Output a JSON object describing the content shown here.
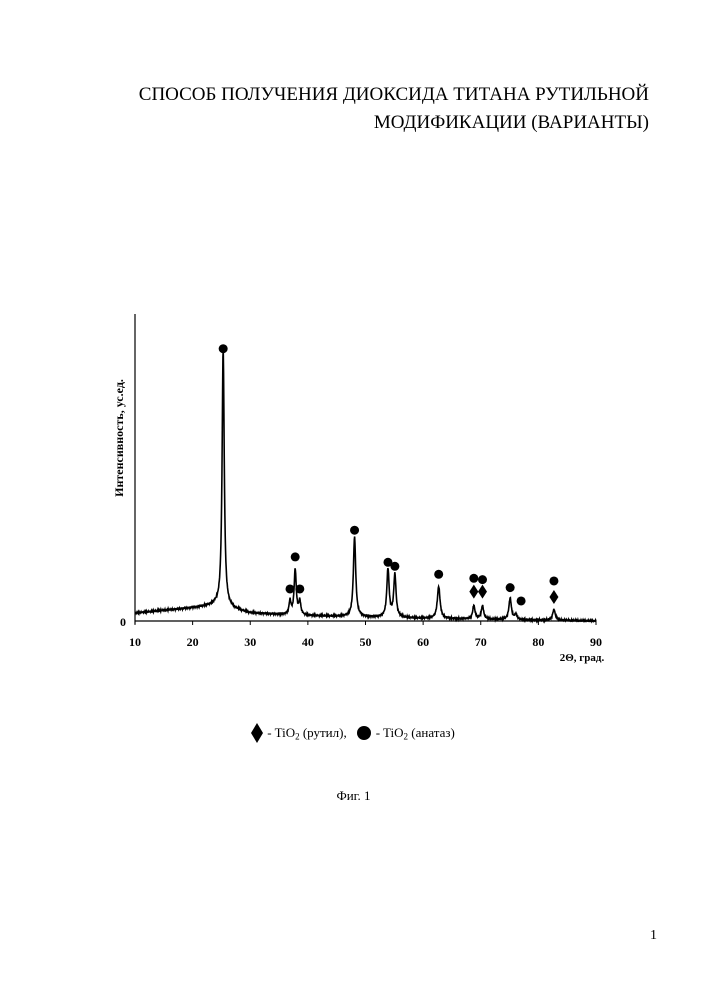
{
  "document": {
    "title_line1": "СПОСОБ ПОЛУЧЕНИЯ ДИОКСИДА ТИТАНА РУТИЛЬНОЙ",
    "title_line2": "МОДИФИКАЦИИ (ВАРИАНТЫ)",
    "figure_caption": "Фиг. 1",
    "page_number": "1"
  },
  "legend": {
    "rutile_prefix": "- TiO",
    "rutile_subscript": "2",
    "rutile_suffix": " (рутил),",
    "anatase_prefix": "- TiO",
    "anatase_subscript": "2",
    "anatase_suffix": " (анатаз)",
    "rutile_marker": "diamond-icon",
    "anatase_marker": "circle-icon"
  },
  "chart_data": {
    "type": "line",
    "xlabel": "2Θ, град.",
    "ylabel": "Интенсивность, ус.ед.",
    "xlim": [
      10,
      90
    ],
    "ylim": [
      0,
      1.15
    ],
    "x_ticks": [
      "10",
      "20",
      "30",
      "40",
      "50",
      "60",
      "70",
      "80",
      "90"
    ],
    "y_ticks": [
      "0"
    ],
    "grid": false,
    "line_color": "#000000",
    "baseline": [
      [
        10,
        0.03
      ],
      [
        20,
        0.05
      ],
      [
        24,
        0.06
      ],
      [
        30,
        0.03
      ],
      [
        40,
        0.02
      ],
      [
        60,
        0.01
      ],
      [
        90,
        0.0
      ]
    ],
    "peaks": [
      {
        "x": 25.3,
        "height": 0.97,
        "width": 0.22
      },
      {
        "x": 36.9,
        "height": 0.05,
        "width": 0.2
      },
      {
        "x": 37.8,
        "height": 0.17,
        "width": 0.22
      },
      {
        "x": 38.6,
        "height": 0.05,
        "width": 0.2
      },
      {
        "x": 48.1,
        "height": 0.3,
        "width": 0.24
      },
      {
        "x": 53.9,
        "height": 0.18,
        "width": 0.24
      },
      {
        "x": 55.1,
        "height": 0.16,
        "width": 0.24
      },
      {
        "x": 62.7,
        "height": 0.12,
        "width": 0.28
      },
      {
        "x": 68.8,
        "height": 0.05,
        "width": 0.24
      },
      {
        "x": 70.3,
        "height": 0.05,
        "width": 0.24
      },
      {
        "x": 75.1,
        "height": 0.08,
        "width": 0.26
      },
      {
        "x": 76.1,
        "height": 0.02,
        "width": 0.22
      },
      {
        "x": 82.7,
        "height": 0.04,
        "width": 0.28
      }
    ],
    "markers": [
      {
        "type": "anatase",
        "x": 25.3,
        "y": 1.02
      },
      {
        "type": "anatase",
        "x": 36.9,
        "y": 0.12
      },
      {
        "type": "anatase",
        "x": 37.8,
        "y": 0.24
      },
      {
        "type": "anatase",
        "x": 38.6,
        "y": 0.12
      },
      {
        "type": "anatase",
        "x": 48.1,
        "y": 0.34
      },
      {
        "type": "anatase",
        "x": 53.9,
        "y": 0.22
      },
      {
        "type": "anatase",
        "x": 55.1,
        "y": 0.205
      },
      {
        "type": "anatase",
        "x": 62.7,
        "y": 0.175
      },
      {
        "type": "anatase",
        "x": 68.8,
        "y": 0.16
      },
      {
        "type": "anatase",
        "x": 70.3,
        "y": 0.155
      },
      {
        "type": "rutile",
        "x": 68.8,
        "y": 0.11
      },
      {
        "type": "rutile",
        "x": 70.3,
        "y": 0.11
      },
      {
        "type": "anatase",
        "x": 75.1,
        "y": 0.125
      },
      {
        "type": "anatase",
        "x": 77.0,
        "y": 0.075
      },
      {
        "type": "anatase",
        "x": 82.7,
        "y": 0.15
      },
      {
        "type": "rutile",
        "x": 82.7,
        "y": 0.09
      }
    ]
  }
}
